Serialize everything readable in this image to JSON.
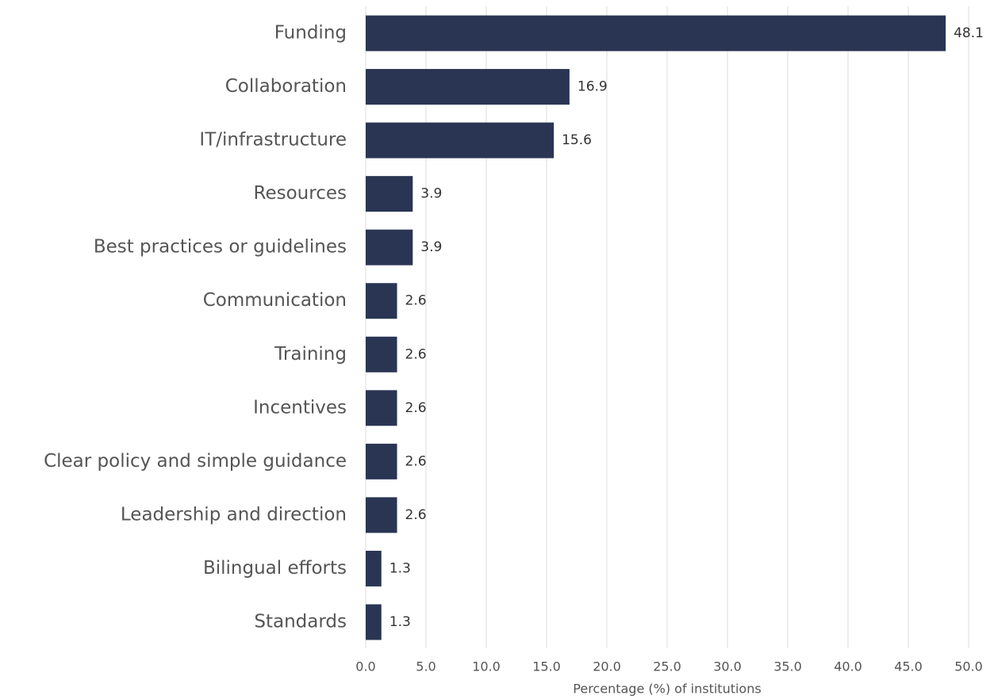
{
  "chart_data": {
    "type": "bar",
    "orientation": "horizontal",
    "categories": [
      "Funding",
      "Collaboration",
      "IT/infrastructure",
      "Resources",
      "Best practices or guidelines",
      "Communication",
      "Training",
      "Incentives",
      "Clear policy and simple guidance",
      "Leadership and direction",
      "Bilingual efforts",
      "Standards"
    ],
    "values": [
      48.1,
      16.9,
      15.6,
      3.9,
      3.9,
      2.6,
      2.6,
      2.6,
      2.6,
      2.6,
      1.3,
      1.3
    ],
    "color": "#2a3553",
    "xlabel": "Percentage (%) of institutions",
    "xlim": [
      0,
      50
    ],
    "xticks": [
      {
        "value": 0,
        "label": "0.0"
      },
      {
        "value": 5,
        "label": "5.0"
      },
      {
        "value": 10,
        "label": "10.0"
      },
      {
        "value": 15,
        "label": "15.0"
      },
      {
        "value": 20,
        "label": "20.0"
      },
      {
        "value": 25,
        "label": "25.0"
      },
      {
        "value": 30,
        "label": "30.0"
      },
      {
        "value": 35,
        "label": "35.0"
      },
      {
        "value": 40,
        "label": "40.0"
      },
      {
        "value": 45,
        "label": "45.0"
      },
      {
        "value": 50,
        "label": "50.0"
      }
    ],
    "grid": true
  }
}
